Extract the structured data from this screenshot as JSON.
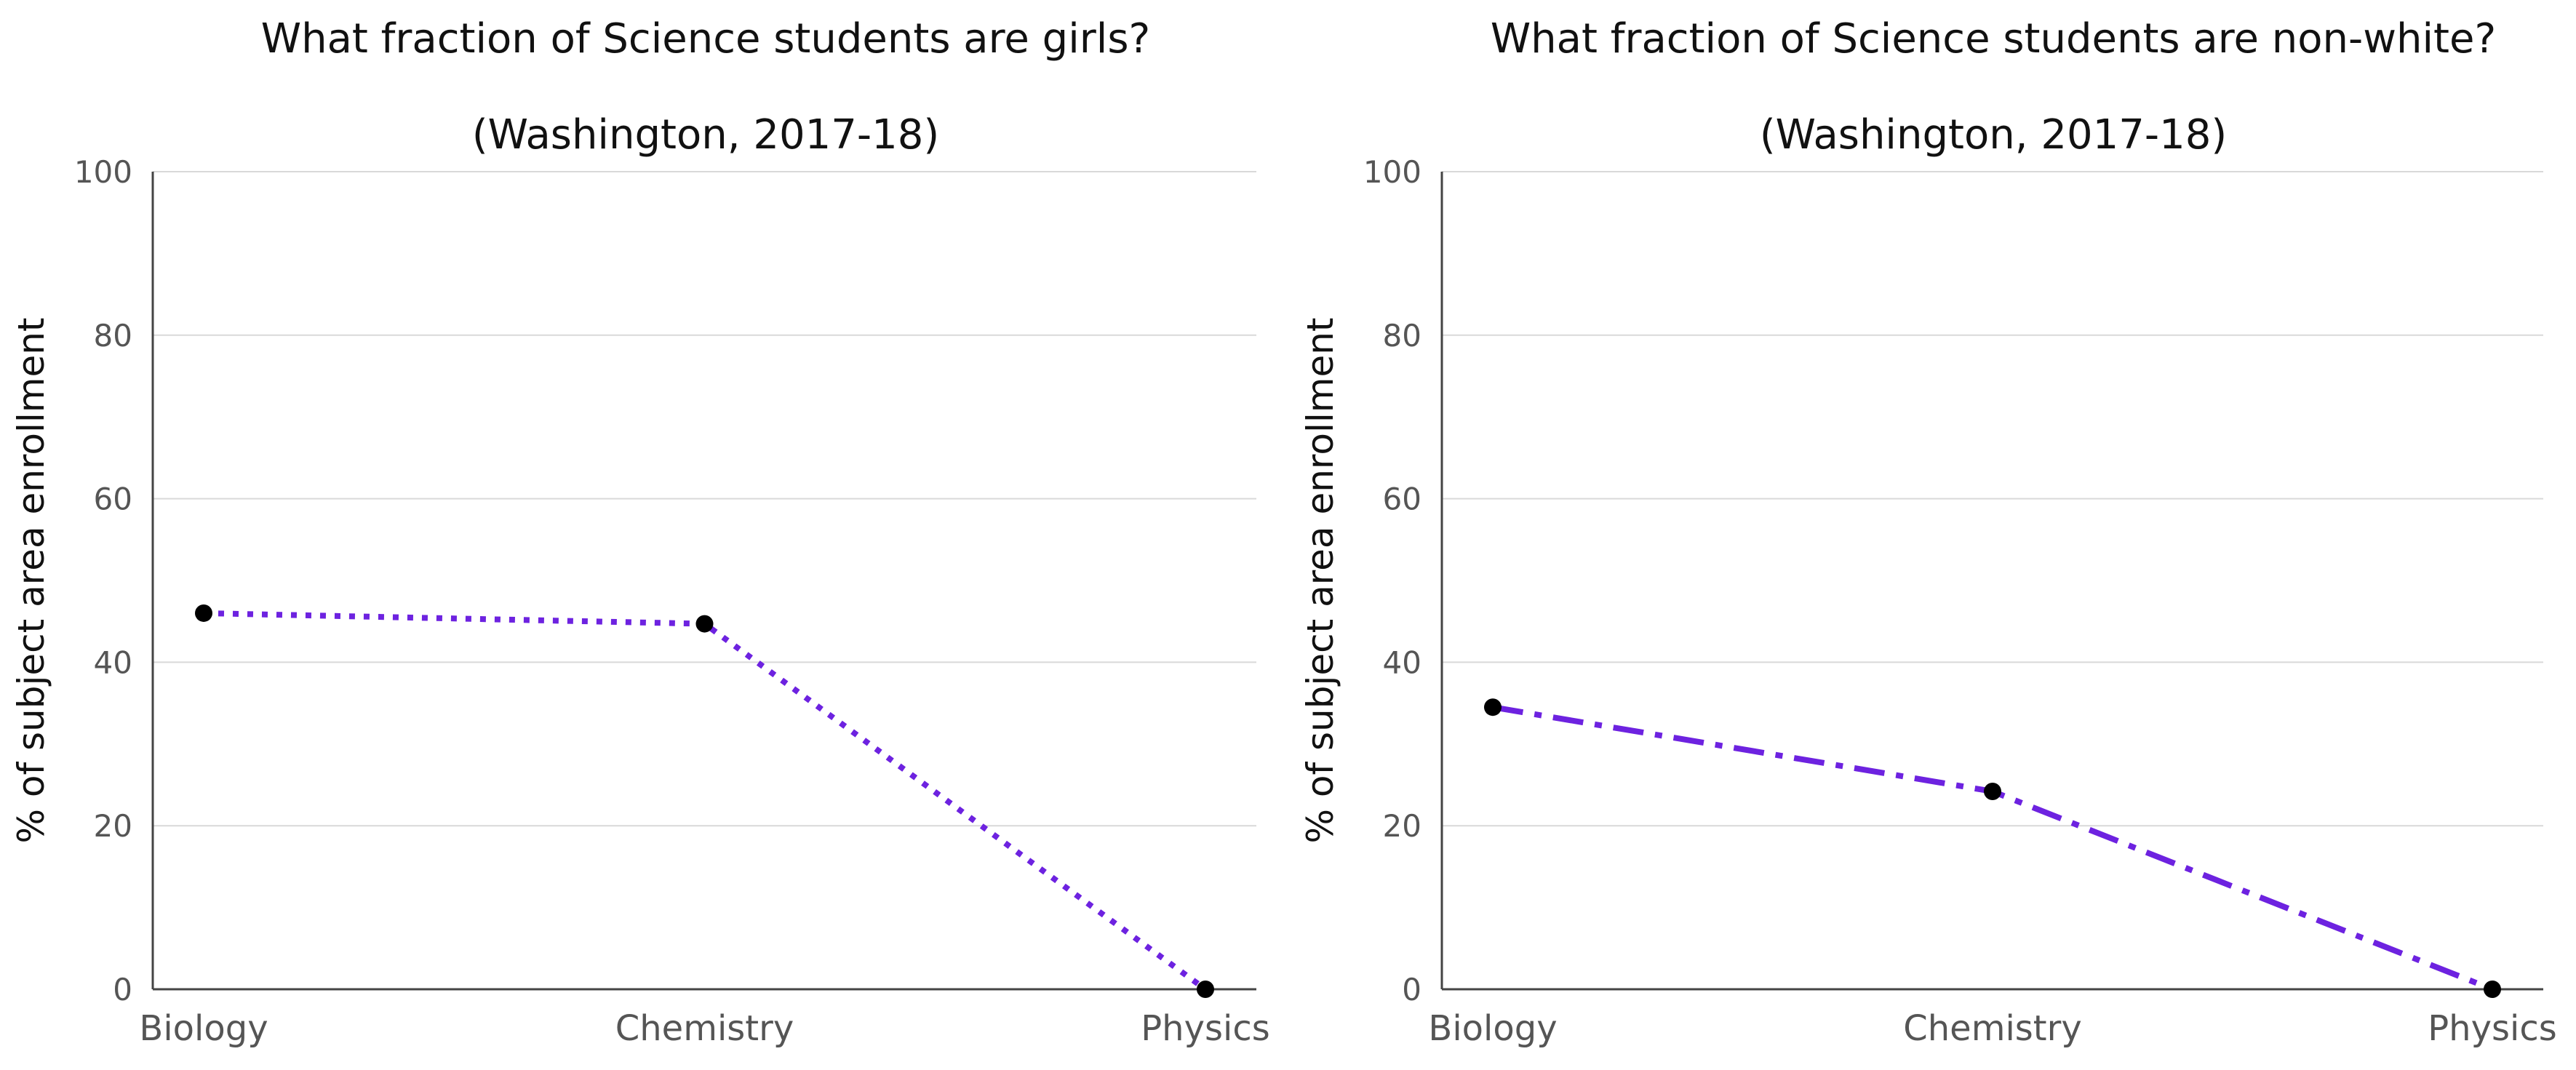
{
  "chart_data": [
    {
      "type": "line",
      "title": "What fraction of Science students are girls?",
      "subtitle": "(Washington, 2017-18)",
      "xlabel": "",
      "ylabel": "% of subject area enrollment",
      "categories": [
        "Biology",
        "Chemistry",
        "Physics"
      ],
      "series": [
        {
          "values": [
            46,
            44.7,
            0
          ],
          "color": "#6d22e0",
          "line_style": "dotted",
          "marker_color": "#000000"
        }
      ],
      "ylim": [
        0,
        100
      ],
      "yticks": [
        0,
        20,
        40,
        60,
        80,
        100
      ],
      "grid": "horizontal",
      "legend": "none"
    },
    {
      "type": "line",
      "title": "What fraction of Science students are non-white?",
      "subtitle": "(Washington, 2017-18)",
      "xlabel": "",
      "ylabel": "% of subject area enrollment",
      "categories": [
        "Biology",
        "Chemistry",
        "Physics"
      ],
      "series": [
        {
          "values": [
            34.5,
            24.2,
            0
          ],
          "color": "#6d22e0",
          "line_style": "dash-dot",
          "marker_color": "#000000"
        }
      ],
      "ylim": [
        0,
        100
      ],
      "yticks": [
        0,
        20,
        40,
        60,
        80,
        100
      ],
      "grid": "horizontal",
      "legend": "none"
    }
  ]
}
